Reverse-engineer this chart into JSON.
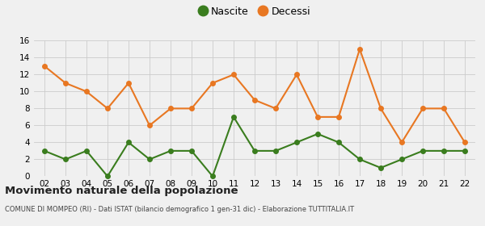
{
  "years": [
    "02",
    "03",
    "04",
    "05",
    "06",
    "07",
    "08",
    "09",
    "10",
    "11",
    "12",
    "13",
    "14",
    "15",
    "16",
    "17",
    "18",
    "19",
    "20",
    "21",
    "22"
  ],
  "nascite": [
    3,
    2,
    3,
    0,
    4,
    2,
    3,
    3,
    0,
    7,
    3,
    3,
    4,
    5,
    4,
    2,
    1,
    2,
    3,
    3,
    3
  ],
  "decessi": [
    13,
    11,
    10,
    8,
    11,
    6,
    8,
    8,
    11,
    12,
    9,
    8,
    12,
    7,
    7,
    15,
    8,
    4,
    8,
    8,
    4
  ],
  "nascite_color": "#3a7d1e",
  "decessi_color": "#e87722",
  "background_color": "#f0f0f0",
  "grid_color": "#cccccc",
  "title": "Movimento naturale della popolazione",
  "subtitle": "COMUNE DI MOMPEO (RI) - Dati ISTAT (bilancio demografico 1 gen-31 dic) - Elaborazione TUTTITALIA.IT",
  "ylim": [
    0,
    16
  ],
  "yticks": [
    0,
    2,
    4,
    6,
    8,
    10,
    12,
    14,
    16
  ],
  "legend_nascite": "Nascite",
  "legend_decessi": "Decessi",
  "marker": "o",
  "linewidth": 1.5,
  "markersize": 4
}
